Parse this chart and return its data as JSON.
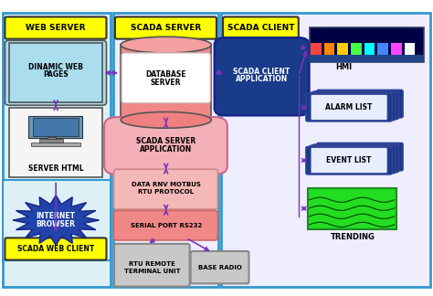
{
  "bg_color": "#ffffff",
  "colors": {
    "yellow": "#ffff00",
    "light_blue_bg": "#cce8f0",
    "light_blue_box": "#aaddee",
    "dark_blue": "#1a3a8a",
    "pink_dark": "#f08080",
    "pink_mid": "#f4b0b0",
    "pink_light": "#f8d0d0",
    "gray": "#b8b8b8",
    "green": "#22dd22",
    "arrow_purple": "#7733bb",
    "box_border_blue": "#3399cc",
    "white": "#ffffff"
  },
  "layout": {
    "web_outer": [
      0.01,
      0.03,
      0.245,
      0.93
    ],
    "scada_server_outer": [
      0.26,
      0.03,
      0.245,
      0.93
    ],
    "scada_client_outer": [
      0.51,
      0.03,
      0.485,
      0.93
    ]
  }
}
